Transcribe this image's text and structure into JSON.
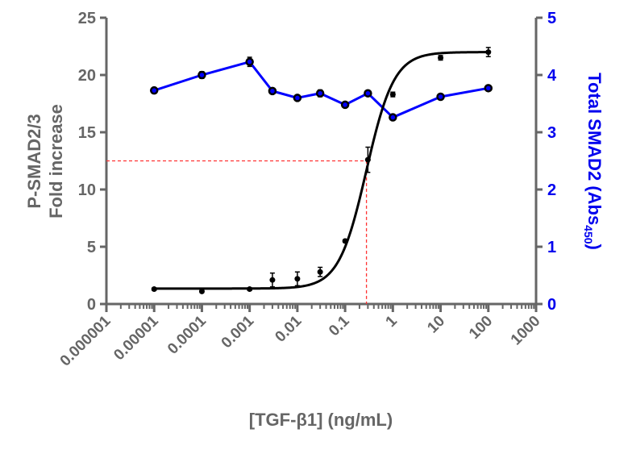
{
  "chart_data": {
    "type": "line",
    "xscale": "log",
    "x": [
      1e-05,
      0.0001,
      0.001,
      0.003,
      0.01,
      0.03,
      0.1,
      0.3,
      1,
      10,
      100
    ],
    "xlim": [
      1e-06,
      1000
    ],
    "xticks": [
      "0.000001",
      "0.00001",
      "0.0001",
      "0.001",
      "0.01",
      "0.1",
      "1",
      "10",
      "100",
      "1000"
    ],
    "xlabel": "[TGF-β1] (ng/mL)",
    "ylabel_left": [
      "P-SMAD2/3",
      "Fold increase"
    ],
    "ylim_left": [
      0,
      25
    ],
    "yticks_left": [
      "0",
      "5",
      "10",
      "15",
      "20",
      "25"
    ],
    "ylabel_right": "Total SMAD2  (Abs",
    "ylabel_right_sub": "450",
    "ylabel_right_close": ")",
    "ylim_right": [
      0,
      5
    ],
    "yticks_right": [
      "0",
      "1",
      "2",
      "3",
      "4",
      "5"
    ],
    "series": [
      {
        "name": "P-SMAD2/3",
        "axis": "left",
        "color": "#000000",
        "values": [
          1.3,
          1.1,
          1.3,
          2.1,
          2.2,
          2.8,
          5.5,
          12.6,
          18.3,
          21.5,
          22.0
        ],
        "errors": [
          0.1,
          0.1,
          0.1,
          0.6,
          0.6,
          0.4,
          0.1,
          1.1,
          0.2,
          0.2,
          0.4
        ],
        "fit": {
          "model": "4PL",
          "bottom": 1.35,
          "top": 22.0,
          "ec50": 0.28,
          "hill": 1.5
        }
      },
      {
        "name": "Total SMAD2",
        "axis": "right",
        "color": "#0000ff",
        "values": [
          3.73,
          4.0,
          4.23,
          3.72,
          3.6,
          3.68,
          3.48,
          3.68,
          3.26,
          3.62,
          3.77
        ],
        "errors": [
          0.03,
          0.06,
          0.08,
          0.03,
          0.03,
          0.06,
          0.03,
          0.03,
          0.03,
          0.03,
          0.03
        ]
      }
    ],
    "ec50_marker": {
      "x": 0.28,
      "y": 12.5,
      "color": "#ff3333"
    }
  }
}
